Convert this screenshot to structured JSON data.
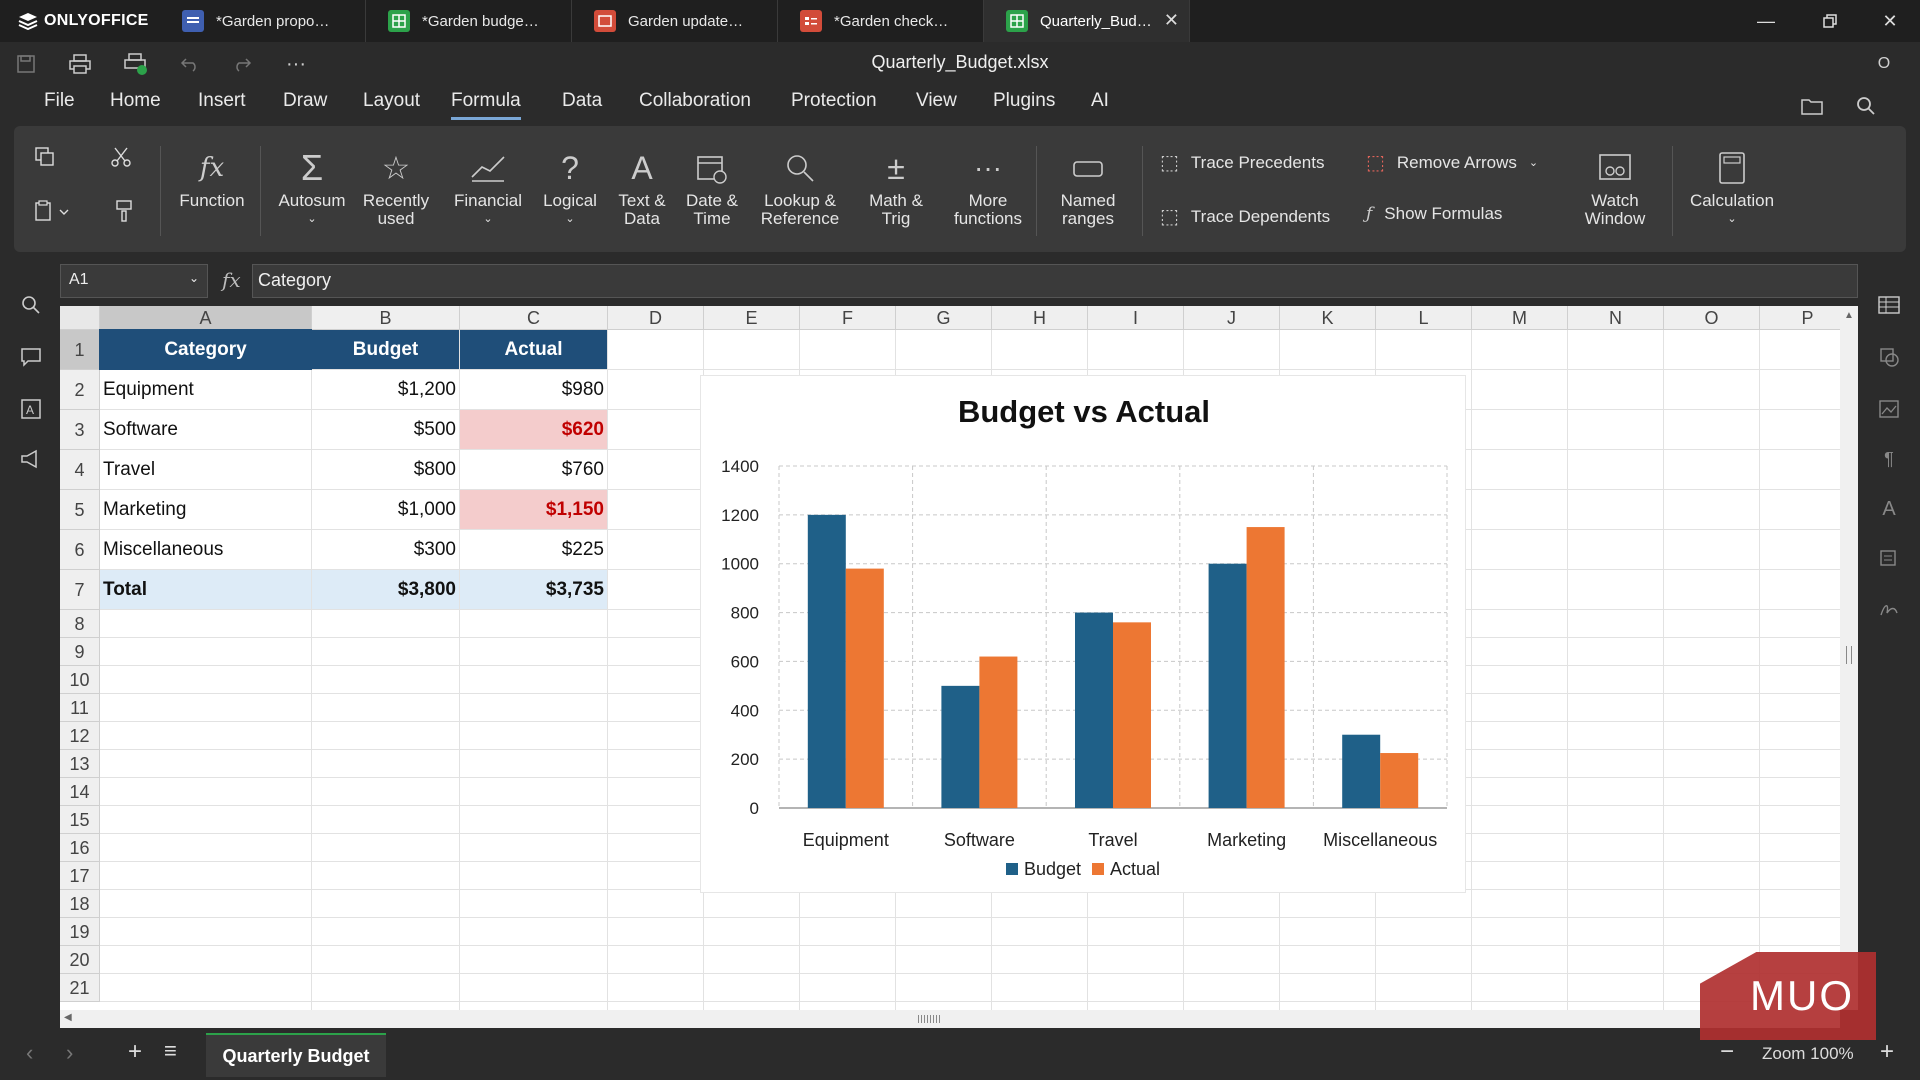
{
  "app": {
    "brand": "ONLYOFFICE",
    "document_title": "Quarterly_Budget.xlsx",
    "user_initial": "O"
  },
  "tabs": [
    {
      "label": "*Garden propo…",
      "type": "doc",
      "color": "#3f5fb0"
    },
    {
      "label": "*Garden budge…",
      "type": "sheet",
      "color": "#2ca24a"
    },
    {
      "label": "Garden update…",
      "type": "slide",
      "color": "#d24c3a"
    },
    {
      "label": "*Garden check…",
      "type": "form",
      "color": "#d24c3a"
    },
    {
      "label": "Quarterly_Bud…",
      "type": "sheet",
      "color": "#2ca24a",
      "active": true
    }
  ],
  "menu": [
    "File",
    "Home",
    "Insert",
    "Draw",
    "Layout",
    "Formula",
    "Data",
    "Collaboration",
    "Protection",
    "View",
    "Plugins",
    "AI"
  ],
  "ribbon": {
    "function": "Function",
    "autosum": "Autosum",
    "recently": [
      "Recently",
      "used"
    ],
    "financial": "Financial",
    "logical": "Logical",
    "text_data": [
      "Text &",
      "Data"
    ],
    "date_time": [
      "Date &",
      "Time"
    ],
    "lookup": [
      "Lookup &",
      "Reference"
    ],
    "math": [
      "Math &",
      "Trig"
    ],
    "more": [
      "More",
      "functions"
    ],
    "named": [
      "Named",
      "ranges"
    ],
    "trace_precedents": "Trace Precedents",
    "trace_dependents": "Trace Dependents",
    "remove_arrows": "Remove Arrows",
    "show_formulas": "Show Formulas",
    "watch": [
      "Watch",
      "Window"
    ],
    "calculation": "Calculation"
  },
  "formula_bar": {
    "name_box": "A1",
    "fx": "fx",
    "content": "Category"
  },
  "columns": [
    "A",
    "B",
    "C",
    "D",
    "E",
    "F",
    "G",
    "H",
    "I",
    "J",
    "K",
    "L",
    "M",
    "N",
    "O",
    "P"
  ],
  "rows": [
    "1",
    "2",
    "3",
    "4",
    "5",
    "6",
    "7",
    "8",
    "9",
    "10",
    "11",
    "12",
    "13",
    "14",
    "15",
    "16",
    "17",
    "18",
    "19",
    "20",
    "21"
  ],
  "table": {
    "headers": [
      "Category",
      "Budget",
      "Actual"
    ],
    "rows": [
      [
        "Equipment",
        "$1,200",
        "$980"
      ],
      [
        "Software",
        "$500",
        "$620"
      ],
      [
        "Travel",
        "$800",
        "$760"
      ],
      [
        "Marketing",
        "$1,000",
        "$1,150"
      ],
      [
        "Miscellaneous",
        "$300",
        "$225"
      ]
    ],
    "over_budget_rows": [
      1,
      3
    ],
    "total": [
      "Total",
      "$3,800",
      "$3,735"
    ]
  },
  "chart_data": {
    "type": "bar",
    "title": "Budget vs Actual",
    "categories": [
      "Equipment",
      "Software",
      "Travel",
      "Marketing",
      "Miscellaneous"
    ],
    "series": [
      {
        "name": "Budget",
        "values": [
          1200,
          500,
          800,
          1000,
          300
        ],
        "color": "#1f6088"
      },
      {
        "name": "Actual",
        "values": [
          980,
          620,
          760,
          1150,
          225
        ],
        "color": "#ed7733"
      }
    ],
    "ylim": [
      0,
      1400
    ],
    "yticks": [
      "0",
      "200",
      "400",
      "600",
      "800",
      "1000",
      "1200",
      "1400"
    ],
    "grid": true,
    "legend": "bottom"
  },
  "sheet_tab": "Quarterly Budget",
  "zoom": "Zoom 100%",
  "watermark": "MUO"
}
